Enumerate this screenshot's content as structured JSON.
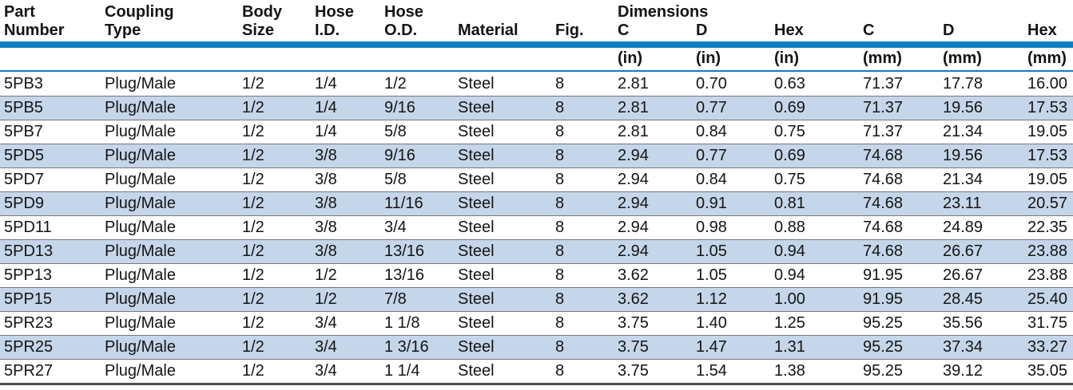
{
  "table": {
    "group_header": "Dimensions",
    "columns": [
      {
        "key": "part-number",
        "line1": "Part",
        "line2": "Number",
        "unit": ""
      },
      {
        "key": "coupling-type",
        "line1": "Coupling",
        "line2": "Type",
        "unit": ""
      },
      {
        "key": "body-size",
        "line1": "Body",
        "line2": "Size",
        "unit": ""
      },
      {
        "key": "hose-id",
        "line1": "Hose",
        "line2": "I.D.",
        "unit": ""
      },
      {
        "key": "hose-od",
        "line1": "Hose",
        "line2": "O.D.",
        "unit": ""
      },
      {
        "key": "material",
        "line1": "",
        "line2": "Material",
        "unit": ""
      },
      {
        "key": "fig",
        "line1": "",
        "line2": "Fig.",
        "unit": ""
      },
      {
        "key": "c-in",
        "line1": "Dimensions",
        "line2": "C",
        "unit": "(in)"
      },
      {
        "key": "d-in",
        "line1": "",
        "line2": "D",
        "unit": "(in)"
      },
      {
        "key": "hex-in",
        "line1": "",
        "line2": "Hex",
        "unit": "(in)"
      },
      {
        "key": "c-mm",
        "line1": "",
        "line2": "C",
        "unit": "(mm)"
      },
      {
        "key": "d-mm",
        "line1": "",
        "line2": "D",
        "unit": "(mm)"
      },
      {
        "key": "hex-mm",
        "line1": "",
        "line2": "Hex",
        "unit": "(mm)"
      }
    ],
    "rows": [
      [
        "5PB3",
        "Plug/Male",
        "1/2",
        "1/4",
        "1/2",
        "Steel",
        "8",
        "2.81",
        "0.70",
        "0.63",
        "71.37",
        "17.78",
        "16.00"
      ],
      [
        "5PB5",
        "Plug/Male",
        "1/2",
        "1/4",
        "9/16",
        "Steel",
        "8",
        "2.81",
        "0.77",
        "0.69",
        "71.37",
        "19.56",
        "17.53"
      ],
      [
        "5PB7",
        "Plug/Male",
        "1/2",
        "1/4",
        "5/8",
        "Steel",
        "8",
        "2.81",
        "0.84",
        "0.75",
        "71.37",
        "21.34",
        "19.05"
      ],
      [
        "5PD5",
        "Plug/Male",
        "1/2",
        "3/8",
        "9/16",
        "Steel",
        "8",
        "2.94",
        "0.77",
        "0.69",
        "74.68",
        "19.56",
        "17.53"
      ],
      [
        "5PD7",
        "Plug/Male",
        "1/2",
        "3/8",
        "5/8",
        "Steel",
        "8",
        "2.94",
        "0.84",
        "0.75",
        "74.68",
        "21.34",
        "19.05"
      ],
      [
        "5PD9",
        "Plug/Male",
        "1/2",
        "3/8",
        "11/16",
        "Steel",
        "8",
        "2.94",
        "0.91",
        "0.81",
        "74.68",
        "23.11",
        "20.57"
      ],
      [
        "5PD11",
        "Plug/Male",
        "1/2",
        "3/8",
        "3/4",
        "Steel",
        "8",
        "2.94",
        "0.98",
        "0.88",
        "74.68",
        "24.89",
        "22.35"
      ],
      [
        "5PD13",
        "Plug/Male",
        "1/2",
        "3/8",
        "13/16",
        "Steel",
        "8",
        "2.94",
        "1.05",
        "0.94",
        "74.68",
        "26.67",
        "23.88"
      ],
      [
        "5PP13",
        "Plug/Male",
        "1/2",
        "1/2",
        "13/16",
        "Steel",
        "8",
        "3.62",
        "1.05",
        "0.94",
        "91.95",
        "26.67",
        "23.88"
      ],
      [
        "5PP15",
        "Plug/Male",
        "1/2",
        "1/2",
        "7/8",
        "Steel",
        "8",
        "3.62",
        "1.12",
        "1.00",
        "91.95",
        "28.45",
        "25.40"
      ],
      [
        "5PR23",
        "Plug/Male",
        "1/2",
        "3/4",
        "1 1/8",
        "Steel",
        "8",
        "3.75",
        "1.40",
        "1.25",
        "95.25",
        "35.56",
        "31.75"
      ],
      [
        "5PR25",
        "Plug/Male",
        "1/2",
        "3/4",
        "1 3/16",
        "Steel",
        "8",
        "3.75",
        "1.47",
        "1.31",
        "95.25",
        "37.34",
        "33.27"
      ],
      [
        "5PR27",
        "Plug/Male",
        "1/2",
        "3/4",
        "1 1/4",
        "Steel",
        "8",
        "3.75",
        "1.54",
        "1.38",
        "95.25",
        "39.12",
        "35.05"
      ]
    ],
    "colors": {
      "header_bar": "#0f7ec3",
      "row_alt": "#c5d6ea",
      "separator": "#777777",
      "bottom_rule": "#4f4f4f",
      "text": "#141414"
    }
  }
}
